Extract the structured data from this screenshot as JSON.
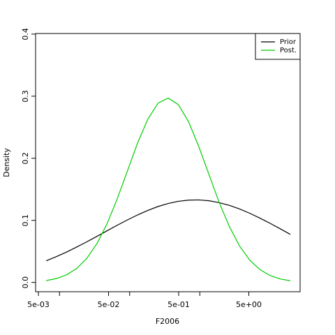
{
  "chart_data": {
    "type": "line",
    "xlabel": "F2006",
    "ylabel": "Density",
    "log_x": true,
    "x": [
      0.00646,
      0.00902,
      0.0126,
      0.0176,
      0.0245,
      0.0343,
      0.0479,
      0.0668,
      0.0933,
      0.13,
      0.182,
      0.254,
      0.355,
      0.495,
      0.692,
      0.966,
      1.35,
      1.88,
      2.63,
      3.67,
      5.13,
      7.16,
      10.0,
      14.0,
      19.5
    ],
    "series": [
      {
        "name": "Prior",
        "color": "#000000",
        "values": [
          0.0348,
          0.0416,
          0.0489,
          0.057,
          0.0654,
          0.0743,
          0.0833,
          0.0922,
          0.1008,
          0.1088,
          0.1161,
          0.1223,
          0.1272,
          0.1307,
          0.1326,
          0.1329,
          0.1316,
          0.1286,
          0.1242,
          0.1184,
          0.1115,
          0.1037,
          0.0953,
          0.0864,
          0.0774
        ]
      },
      {
        "name": "Post.",
        "color": "#00cd00",
        "values": [
          0.003,
          0.0062,
          0.0122,
          0.0225,
          0.0388,
          0.0628,
          0.0952,
          0.1353,
          0.1801,
          0.2249,
          0.2632,
          0.2888,
          0.297,
          0.2863,
          0.2587,
          0.219,
          0.1739,
          0.1294,
          0.0903,
          0.059,
          0.0362,
          0.0208,
          0.0112,
          0.0056,
          0.0027
        ]
      }
    ],
    "xlim": [
      0.00456,
      26.9
    ],
    "xticks": [
      {
        "value": 0.005,
        "label": "5e-03"
      },
      {
        "value": 0.05,
        "label": "5e-02"
      },
      {
        "value": 0.5,
        "label": "5e-01"
      },
      {
        "value": 5,
        "label": "5e+00"
      }
    ],
    "xminorticks": [
      0.01,
      0.1,
      1
    ],
    "ylim": [
      -0.015,
      0.401
    ],
    "yticks": [
      {
        "value": 0,
        "label": "0.0"
      },
      0.1,
      0.2,
      0.3,
      0.4
    ],
    "legend": "top-right"
  }
}
